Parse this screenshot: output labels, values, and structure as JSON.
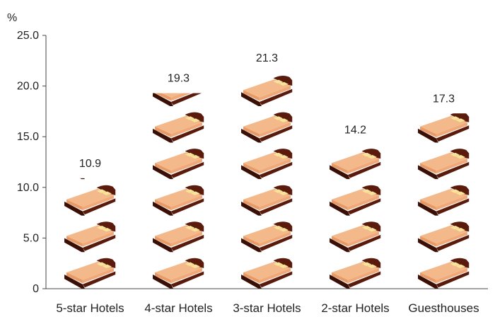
{
  "chart_data": {
    "type": "bar",
    "ylabel": "%",
    "ylim": [
      0,
      25
    ],
    "yticks": [
      "0",
      "5.0",
      "10.0",
      "15.0",
      "20.0",
      "25.0"
    ],
    "categories": [
      "5-star Hotels",
      "4-star Hotels",
      "3-star Hotels",
      "2-star Hotels",
      "Guesthouses"
    ],
    "values": [
      10.9,
      19.3,
      21.3,
      14.2,
      17.3
    ],
    "value_labels": [
      "10.9",
      "19.3",
      "21.3",
      "14.2",
      "17.3"
    ],
    "unit_per_icon": 3.6,
    "icon": "bed-icon",
    "grid": false
  },
  "colors": {
    "bed_frame": "#5a1b0c",
    "bed_frame_dark": "#3a0f06",
    "mattress": "#f3b98a",
    "mattress_shade": "#e89a66",
    "pillow": "#f7e39a",
    "axis": "#444444"
  }
}
